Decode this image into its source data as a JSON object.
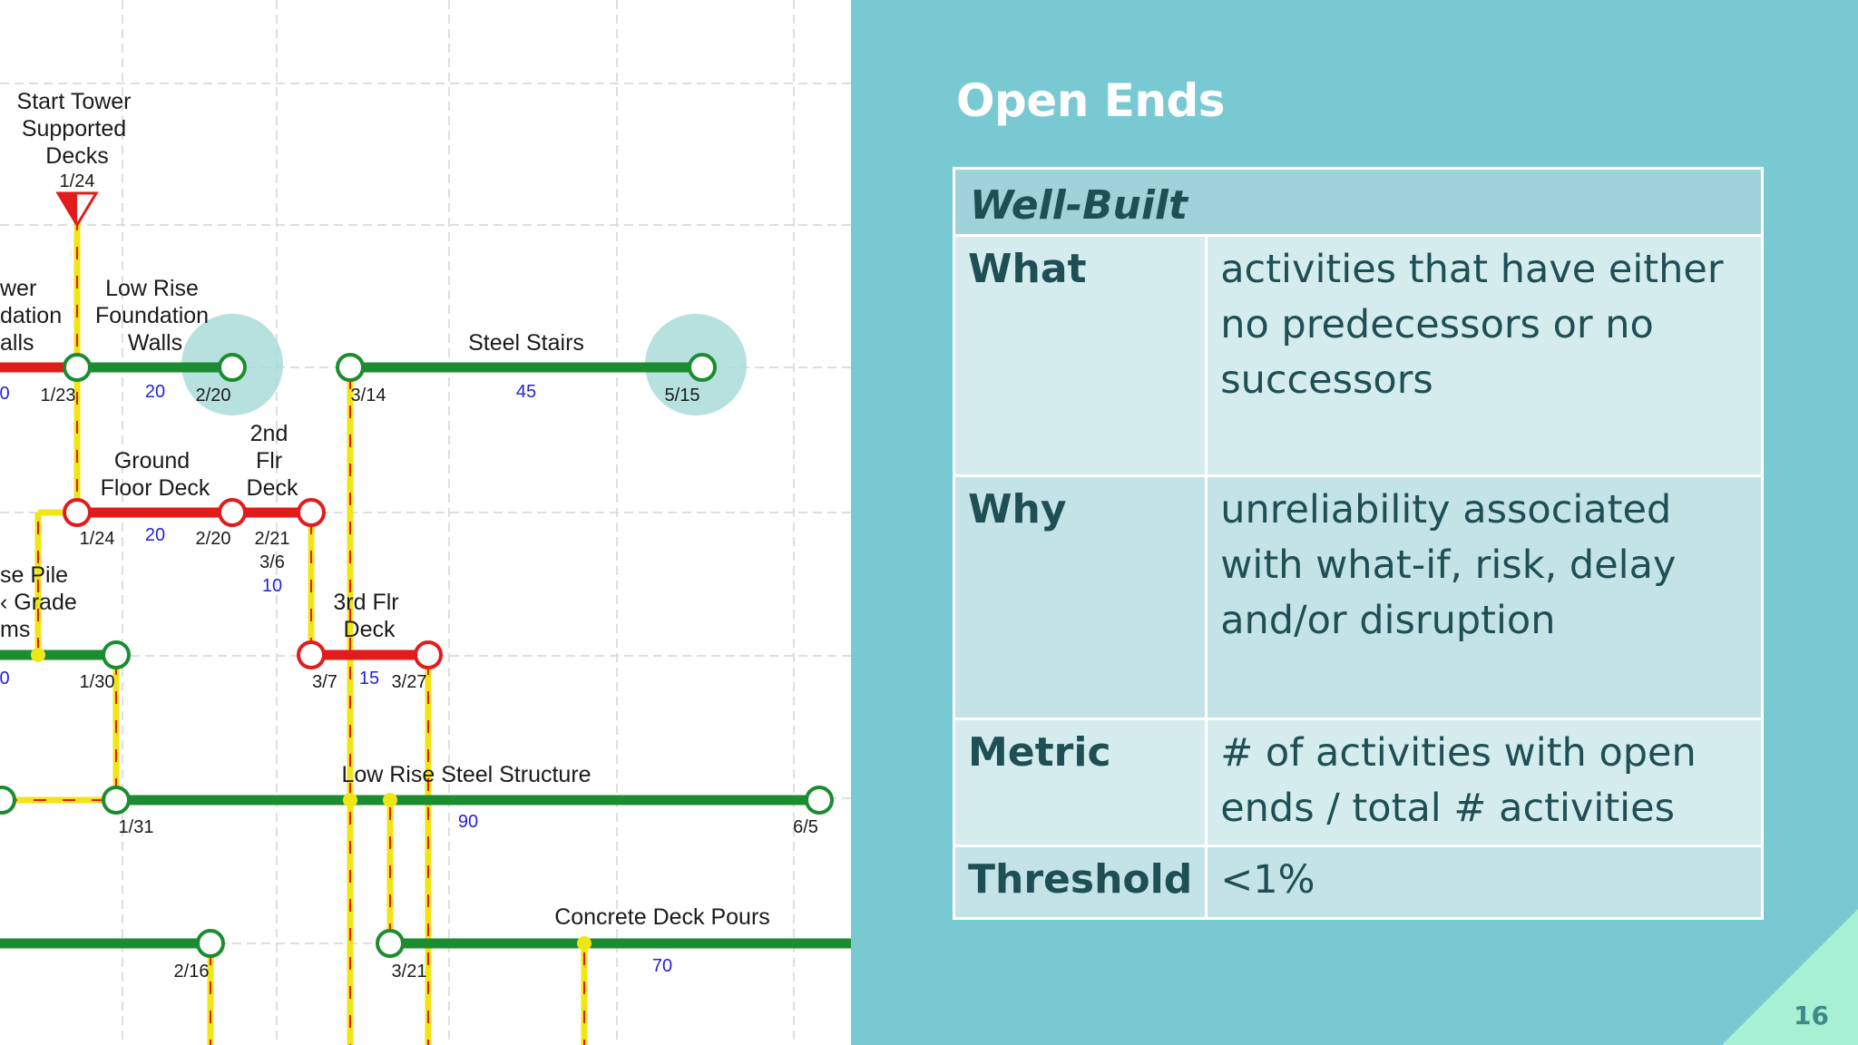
{
  "slide": {
    "title": "Open Ends",
    "page_number": "16",
    "colors": {
      "background": "#78c9d2",
      "corner_accent": "#a8f0d4",
      "table_text": "#1e4f54",
      "critical": "#e21b1b",
      "noncritical": "#1b8c2f",
      "link": "#f0e614",
      "duration_text": "#2323d6"
    }
  },
  "table": {
    "header": "Well-Built",
    "rows": [
      {
        "label": "What",
        "value": "activities that have either no predecessors or no successors"
      },
      {
        "label": "Why",
        "value": "unreliability associated with what-if, risk, delay and/or disruption"
      },
      {
        "label": "Metric",
        "value": "# of activities with open ends / total # activities"
      },
      {
        "label": "Threshold",
        "value": "<1%"
      }
    ]
  },
  "diagram": {
    "labels": {
      "start_tower": [
        "Start Tower",
        "Supported",
        "Decks"
      ],
      "start_tower_date": "1/24",
      "tower_foundation": [
        "wer",
        "dation",
        "alls"
      ],
      "low_rise_foundation": [
        "Low Rise",
        "Foundation",
        "Walls"
      ],
      "steel_stairs": "Steel Stairs",
      "ground_floor_deck": [
        "Ground",
        "Floor Deck"
      ],
      "second_flr_deck": [
        "2nd",
        "Flr",
        "Deck"
      ],
      "pile_grade": [
        "se Pile",
        "‹ Grade",
        "ms"
      ],
      "third_flr_deck": [
        "3rd Flr",
        "Deck"
      ],
      "low_rise_steel": "Low Rise Steel Structure",
      "concrete_deck_pours": "Concrete Deck Pours"
    },
    "dates": {
      "d_0a": "0",
      "d_1_23": "1/23",
      "d_2_20a": "2/20",
      "d_3_14": "3/14",
      "d_5_15": "5/15",
      "d_1_24": "1/24",
      "d_2_20b": "2/20",
      "d_2_21": "2/21",
      "d_3_6": "3/6",
      "d_0b": "0",
      "d_1_30": "1/30",
      "d_3_7": "3/7",
      "d_3_27": "3/27",
      "d_1_31": "1/31",
      "d_6_5": "6/5",
      "d_2_16": "2/16",
      "d_3_21": "3/21"
    },
    "durations": {
      "low_rise_foundation": "20",
      "steel_stairs": "45",
      "ground_floor_deck": "20",
      "second_flr_deck": "10",
      "third_flr_deck": "15",
      "low_rise_steel": "90",
      "concrete_deck_pours": "70"
    },
    "highlighted_open_ends": [
      "2/20",
      "5/15"
    ]
  }
}
